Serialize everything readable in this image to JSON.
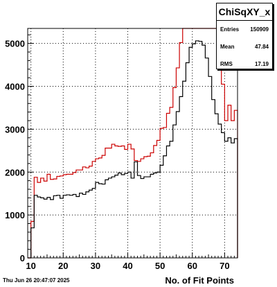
{
  "chart_data": {
    "type": "step",
    "title": "",
    "xlabel": "No. of Fit Points",
    "ylabel": "",
    "xlim": [
      9,
      74
    ],
    "ylim": [
      0,
      5350
    ],
    "x_ticks": [
      10,
      20,
      30,
      40,
      50,
      60,
      70
    ],
    "y_ticks": [
      0,
      1000,
      2000,
      3000,
      4000,
      5000
    ],
    "grid": true,
    "series": [
      {
        "color": "#cc0000",
        "bin_edges": [
          9,
          10,
          11,
          12,
          13,
          14,
          15,
          16,
          17,
          18,
          19,
          20,
          21,
          22,
          23,
          24,
          25,
          26,
          27,
          28,
          29,
          30,
          31,
          32,
          33,
          34,
          35,
          36,
          37,
          38,
          39,
          40,
          41,
          42,
          43,
          44,
          45,
          46,
          47,
          48,
          49,
          50,
          51,
          52,
          53,
          54,
          55,
          56,
          57,
          58,
          59,
          60,
          61,
          62,
          63,
          64,
          65,
          66,
          67,
          68,
          69,
          70,
          71,
          72,
          73,
          74
        ],
        "values": [
          0,
          850,
          1880,
          1760,
          1860,
          1790,
          1950,
          1830,
          1840,
          1900,
          1910,
          1940,
          1950,
          1950,
          1990,
          2050,
          2050,
          2120,
          2100,
          2140,
          2250,
          2310,
          2330,
          2390,
          2560,
          2560,
          2650,
          2610,
          2600,
          2610,
          2530,
          2650,
          2540,
          2270,
          2250,
          2310,
          2360,
          2370,
          2450,
          2620,
          2740,
          3020,
          3040,
          3370,
          3510,
          3970,
          4430,
          5020,
          5350,
          5350,
          5350,
          5350,
          5350,
          5350,
          5350,
          5350,
          5350,
          5350,
          5350,
          4850,
          4050,
          3200,
          3560,
          3200,
          3440,
          0
        ]
      },
      {
        "color": "#000000",
        "bin_edges": [
          9,
          10,
          11,
          12,
          13,
          14,
          15,
          16,
          17,
          18,
          19,
          20,
          21,
          22,
          23,
          24,
          25,
          26,
          27,
          28,
          29,
          30,
          31,
          32,
          33,
          34,
          35,
          36,
          37,
          38,
          39,
          40,
          41,
          42,
          43,
          44,
          45,
          46,
          47,
          48,
          49,
          50,
          51,
          52,
          53,
          54,
          55,
          56,
          57,
          58,
          59,
          60,
          61,
          62,
          63,
          64,
          65,
          66,
          67,
          68,
          69,
          70,
          71,
          72,
          73,
          74
        ],
        "values": [
          0,
          700,
          1460,
          1420,
          1400,
          1370,
          1410,
          1360,
          1450,
          1460,
          1390,
          1460,
          1470,
          1460,
          1480,
          1430,
          1510,
          1480,
          1540,
          1580,
          1620,
          1760,
          1730,
          1720,
          1820,
          1860,
          1890,
          1930,
          1980,
          1940,
          1970,
          2000,
          1860,
          2240,
          1920,
          1850,
          1890,
          1890,
          1950,
          1980,
          2000,
          2160,
          2380,
          2610,
          2720,
          3100,
          3410,
          3760,
          4120,
          4550,
          4910,
          4990,
          5060,
          5050,
          4960,
          4660,
          4230,
          3690,
          3360,
          3120,
          2920,
          2720,
          2800,
          2680,
          2780,
          0
        ]
      }
    ]
  },
  "stats": {
    "title": "ChiSqXY_x",
    "entries_label": "Entries",
    "entries_value": "150909",
    "mean_label": "Mean",
    "mean_value": "47.84",
    "rms_label": "RMS",
    "rms_value": "17.19"
  },
  "footer": {
    "datestamp": "Thu Jun 26 20:47:07 2025"
  }
}
